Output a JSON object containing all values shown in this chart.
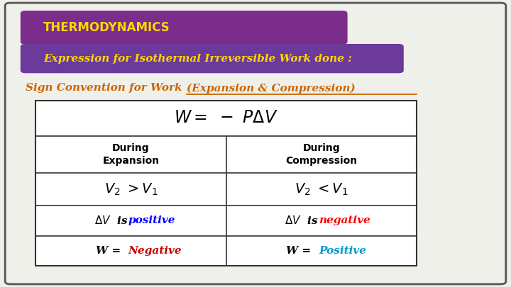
{
  "bg_color": "#f0f0eb",
  "border_color": "#555555",
  "title_bg": "#7B2D8B",
  "title_text": "THERMODYNAMICS",
  "title_text_color": "#FFD700",
  "subtitle_bg": "#6B3A9A",
  "subtitle_text": "Expression for Isothermal Irreversible Work done :",
  "subtitle_text_color": "#FFD700",
  "sign_text_plain": "Sign Convention for Work ",
  "sign_text_italic": "(Expansion & Compression)",
  "sign_text_color": "#CC6600",
  "col1_header": "During\nExpansion",
  "col2_header": "During\nCompression",
  "row3_col1_colored": "positive",
  "row3_col1_color": "#0000FF",
  "row3_col2_colored": "negative",
  "row3_col2_color": "#FF0000",
  "row4_col1_colored": "Negative",
  "row4_col1_color": "#CC0000",
  "row4_col2_colored": "Positive",
  "row4_col2_color": "#0099CC",
  "table_border": "#333333",
  "table_bg": "#FFFFFF"
}
